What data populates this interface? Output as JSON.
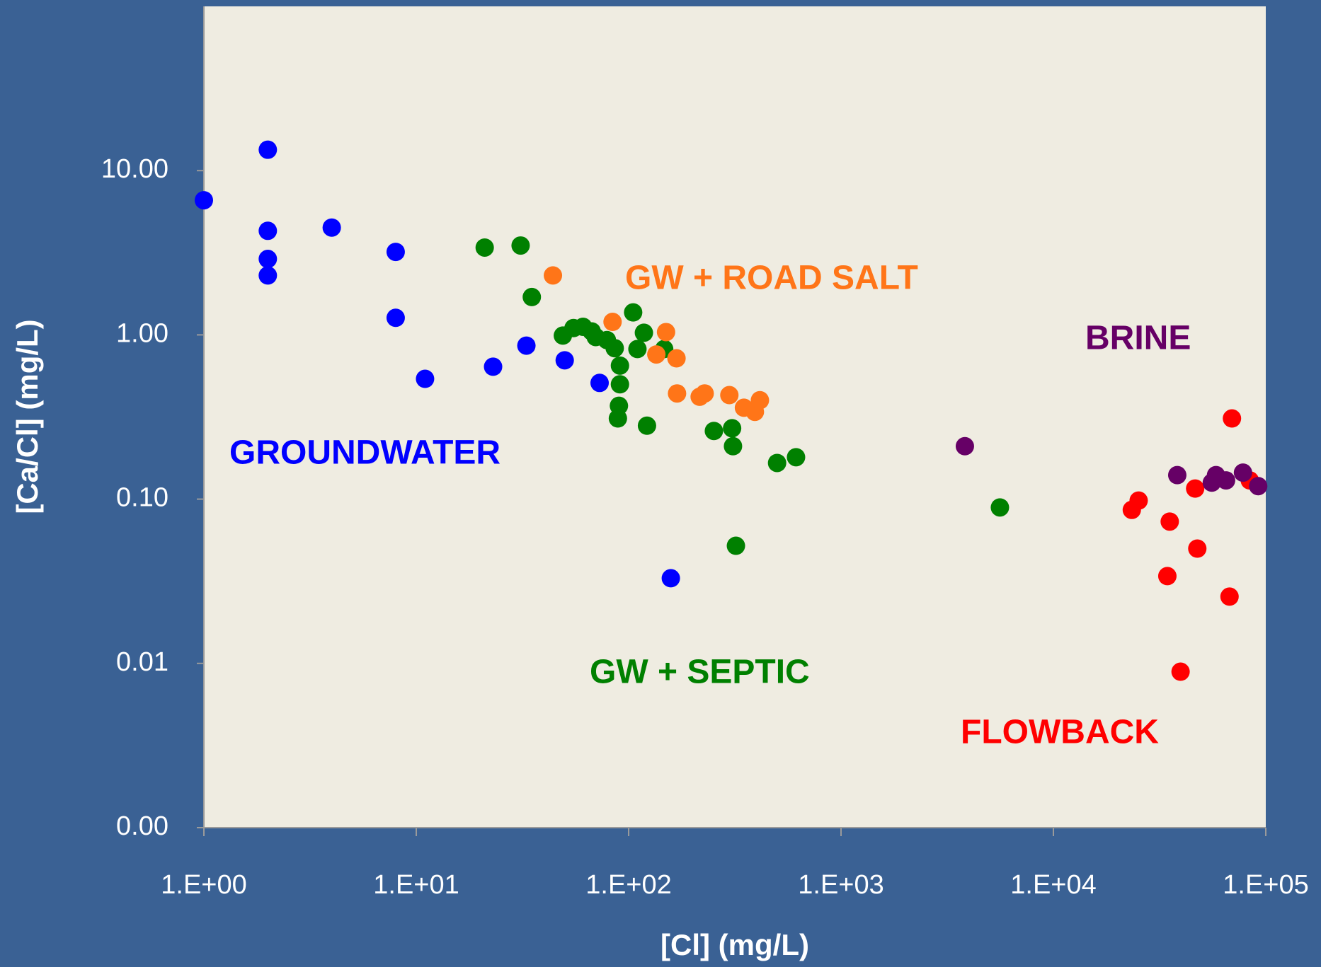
{
  "chart_data": {
    "type": "scatter",
    "x_label": "[Cl] (mg/L)",
    "y_label": "[Ca/Cl] (mg/L)",
    "xscale": "log",
    "yscale": "log",
    "xlim": [
      1,
      100000
    ],
    "ylim": [
      0.001,
      100
    ],
    "xticks": [
      {
        "value": 1,
        "label": "1.E+00"
      },
      {
        "value": 10,
        "label": "1.E+01"
      },
      {
        "value": 100,
        "label": "1.E+02"
      },
      {
        "value": 1000,
        "label": "1.E+03"
      },
      {
        "value": 10000,
        "label": "1.E+04"
      },
      {
        "value": 100000,
        "label": "1.E+05"
      }
    ],
    "yticks": [
      {
        "value": 0.001,
        "label": "0.00"
      },
      {
        "value": 0.01,
        "label": "0.01"
      },
      {
        "value": 0.1,
        "label": "0.10"
      },
      {
        "value": 1,
        "label": "1.00"
      },
      {
        "value": 10,
        "label": "10.00"
      }
    ],
    "grid": false,
    "series": [
      {
        "color": "#0000ff",
        "x": [
          1,
          2,
          2,
          2,
          2,
          4,
          8,
          8,
          11,
          23,
          33,
          50,
          73,
          158
        ],
        "values": [
          6.6,
          13.4,
          4.3,
          2.9,
          2.3,
          4.5,
          3.2,
          1.27,
          0.54,
          0.64,
          0.86,
          0.7,
          0.51,
          0.033
        ]
      },
      {
        "color": "#008000",
        "x": [
          21,
          31,
          35,
          49,
          55,
          61,
          67,
          70,
          79,
          86,
          91,
          91,
          90,
          89,
          105,
          110,
          118,
          147,
          122,
          252,
          307,
          310,
          320,
          500,
          614,
          5600
        ],
        "values": [
          3.4,
          3.5,
          1.7,
          0.99,
          1.1,
          1.12,
          1.05,
          0.97,
          0.93,
          0.83,
          0.65,
          0.5,
          0.37,
          0.31,
          1.37,
          0.82,
          1.03,
          0.82,
          0.28,
          0.26,
          0.27,
          0.21,
          0.052,
          0.166,
          0.18,
          0.089
        ]
      },
      {
        "color": "#ff7518",
        "x": [
          44,
          84,
          150,
          135,
          168,
          169,
          216,
          228,
          298,
          349,
          393,
          415
        ],
        "values": [
          2.3,
          1.2,
          1.04,
          0.76,
          0.72,
          0.44,
          0.42,
          0.44,
          0.43,
          0.36,
          0.34,
          0.4
        ]
      },
      {
        "color": "#ff0000",
        "x": [
          69300,
          23400,
          25200,
          35300,
          46500,
          47600,
          34400,
          67500,
          39700,
          84100
        ],
        "values": [
          0.31,
          0.086,
          0.098,
          0.073,
          0.116,
          0.05,
          0.034,
          0.0255,
          0.0089,
          0.13
        ]
      },
      {
        "color": "#660066",
        "x": [
          3830,
          38300,
          55700,
          58300,
          65000,
          78100,
          92100
        ],
        "values": [
          0.21,
          0.14,
          0.126,
          0.14,
          0.13,
          0.145,
          0.12
        ]
      }
    ],
    "annotations": [
      {
        "text": "GW + ROAD SALT",
        "color": "#ff7518"
      },
      {
        "text": "BRINE",
        "color": "#660066"
      },
      {
        "text": "GROUNDWATER",
        "color": "#0000ff"
      },
      {
        "text": "GW + SEPTIC",
        "color": "#008000"
      },
      {
        "text": "FLOWBACK",
        "color": "#ff0000"
      }
    ]
  }
}
